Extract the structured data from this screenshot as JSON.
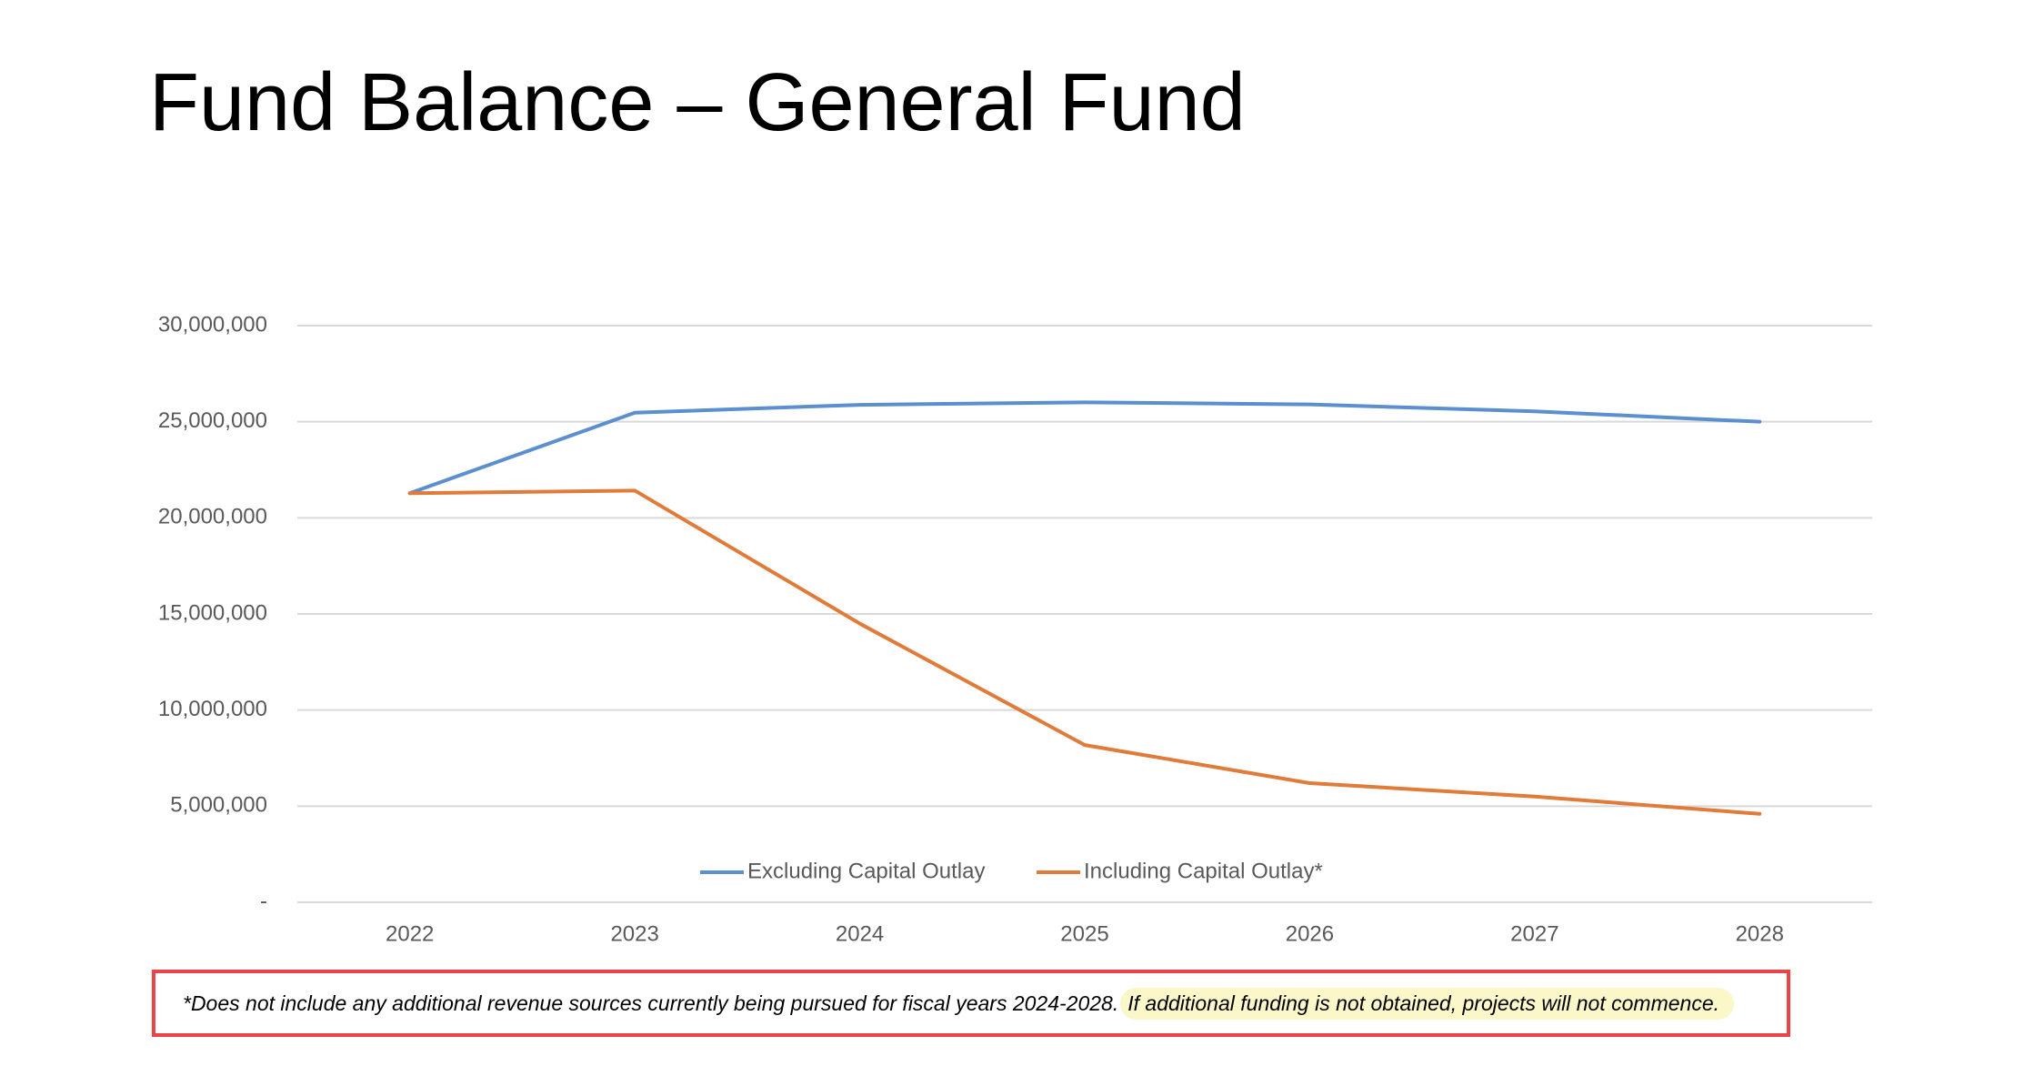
{
  "chart_data": {
    "type": "line",
    "title": "Fund Balance – General Fund",
    "categories": [
      "2022",
      "2023",
      "2024",
      "2025",
      "2026",
      "2027",
      "2028"
    ],
    "series": [
      {
        "name": "Excluding Capital Outlay",
        "color": "#5b8fd0",
        "values": [
          21280000,
          25470000,
          25880000,
          26010000,
          25900000,
          25540000,
          25000000
        ]
      },
      {
        "name": "Including Capital Outlay*",
        "color": "#e07b39",
        "values": [
          21280000,
          21420000,
          14500000,
          8180000,
          6200000,
          5500000,
          4600000
        ]
      }
    ],
    "ylim": [
      0,
      30000000
    ],
    "yticks": [
      {
        "value": 0,
        "label": "-"
      },
      {
        "value": 5000000,
        "label": "5,000,000"
      },
      {
        "value": 10000000,
        "label": "10,000,000"
      },
      {
        "value": 15000000,
        "label": "15,000,000"
      },
      {
        "value": 20000000,
        "label": "20,000,000"
      },
      {
        "value": 25000000,
        "label": "25,000,000"
      },
      {
        "value": 30000000,
        "label": "30,000,000"
      }
    ],
    "grid": true,
    "legend": "bottom",
    "footnote": {
      "text": "*Does not include any additional revenue sources currently being pursued for fiscal years 2024-2028.",
      "highlight": "If additional funding is not obtained, projects will not commence."
    }
  }
}
